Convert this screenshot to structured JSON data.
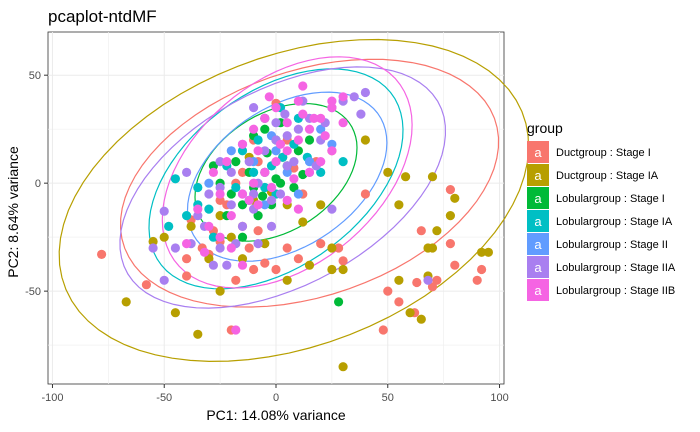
{
  "chart_data": {
    "type": "scatter",
    "title": "pcaplot-ntdMF",
    "xlabel": "PC1: 14.08% variance",
    "ylabel": "PC2: 8.64% variance",
    "xlim": [
      -102,
      102
    ],
    "ylim": [
      -93,
      70
    ],
    "x_ticks": [
      -100,
      -50,
      0,
      50,
      100
    ],
    "y_ticks": [
      -50,
      0,
      50
    ],
    "x_tick_labels": [
      "-100",
      "-50",
      "0",
      "50",
      "100"
    ],
    "y_tick_labels": [
      "-50",
      "0",
      "50"
    ],
    "grid": true,
    "legend": {
      "title": "group",
      "placement": "right",
      "key_glyph": "a"
    },
    "series": [
      {
        "name": "Ductgroup : Stage I",
        "color": "#F8766D",
        "ellipse": {
          "cx": 15,
          "cy": 0,
          "rx": 88,
          "ry": 52,
          "angle": 20
        },
        "points": [
          [
            -78,
            -33
          ],
          [
            -58,
            -47
          ],
          [
            -40,
            -43
          ],
          [
            -25,
            -27
          ],
          [
            -20,
            -68
          ],
          [
            -30,
            -33
          ],
          [
            -18,
            -45
          ],
          [
            -10,
            -40
          ],
          [
            -5,
            -37
          ],
          [
            0,
            -40
          ],
          [
            -15,
            -20
          ],
          [
            -22,
            -10
          ],
          [
            5,
            -30
          ],
          [
            10,
            -35
          ],
          [
            20,
            -28
          ],
          [
            -38,
            -17
          ],
          [
            -33,
            -30
          ],
          [
            -2,
            -4
          ],
          [
            3,
            12
          ],
          [
            8,
            7
          ],
          [
            -15,
            5
          ],
          [
            -10,
            20
          ],
          [
            5,
            20
          ],
          [
            18,
            10
          ],
          [
            12,
            -5
          ],
          [
            -25,
            -8
          ],
          [
            30,
            -36
          ],
          [
            50,
            -50
          ],
          [
            55,
            -55
          ],
          [
            48,
            -68
          ],
          [
            65,
            -22
          ],
          [
            63,
            -46
          ],
          [
            72,
            -45
          ],
          [
            78,
            -28
          ],
          [
            80,
            -38
          ],
          [
            90,
            -45
          ],
          [
            92,
            -40
          ],
          [
            78,
            -3
          ],
          [
            62,
            -60
          ],
          [
            70,
            -48
          ],
          [
            40,
            -5
          ],
          [
            -5,
            30
          ],
          [
            0,
            37
          ],
          [
            -8,
            10
          ],
          [
            25,
            15
          ],
          [
            -40,
            -35
          ],
          [
            -12,
            -30
          ],
          [
            -28,
            -22
          ],
          [
            -18,
            0
          ],
          [
            -8,
            -22
          ],
          [
            28,
            -30
          ]
        ]
      },
      {
        "name": "Ductgroup : Stage IA",
        "color": "#B79F00",
        "ellipse": {
          "cx": 8,
          "cy": -8,
          "rx": 110,
          "ry": 67,
          "angle": 22
        },
        "points": [
          [
            -67,
            -55
          ],
          [
            -55,
            -27
          ],
          [
            -45,
            -60
          ],
          [
            -35,
            -70
          ],
          [
            -25,
            -50
          ],
          [
            -50,
            -25
          ],
          [
            -38,
            -20
          ],
          [
            -15,
            -35
          ],
          [
            -25,
            -15
          ],
          [
            5,
            -45
          ],
          [
            15,
            -38
          ],
          [
            25,
            -40
          ],
          [
            30,
            -40
          ],
          [
            55,
            -45
          ],
          [
            60,
            -60
          ],
          [
            65,
            -63
          ],
          [
            68,
            -43
          ],
          [
            70,
            -30
          ],
          [
            72,
            -22
          ],
          [
            78,
            -15
          ],
          [
            92,
            -32
          ],
          [
            95,
            -32
          ],
          [
            80,
            -7
          ],
          [
            55,
            -10
          ],
          [
            70,
            3
          ],
          [
            68,
            -30
          ],
          [
            25,
            -30
          ],
          [
            30,
            -85
          ],
          [
            -2,
            -4
          ],
          [
            5,
            -10
          ],
          [
            12,
            -18
          ],
          [
            40,
            20
          ],
          [
            50,
            5
          ],
          [
            58,
            3
          ],
          [
            -20,
            -25
          ],
          [
            -30,
            -35
          ],
          [
            -5,
            -28
          ],
          [
            20,
            -10
          ],
          [
            -10,
            -8
          ],
          [
            -12,
            12
          ]
        ]
      },
      {
        "name": "Lobulargroup : Stage I",
        "color": "#00BA38",
        "ellipse": {
          "cx": 0,
          "cy": 5,
          "rx": 40,
          "ry": 27,
          "angle": 35
        },
        "points": [
          [
            -10,
            22
          ],
          [
            -5,
            25
          ],
          [
            2,
            28
          ],
          [
            -18,
            10
          ],
          [
            -12,
            5
          ],
          [
            -5,
            5
          ],
          [
            0,
            2
          ],
          [
            5,
            8
          ],
          [
            10,
            15
          ],
          [
            15,
            20
          ],
          [
            -25,
            0
          ],
          [
            -20,
            -5
          ],
          [
            -15,
            -10
          ],
          [
            -8,
            -15
          ],
          [
            -2,
            -10
          ],
          [
            2,
            0
          ],
          [
            -10,
            -2
          ],
          [
            -22,
            -15
          ],
          [
            -15,
            -25
          ],
          [
            0,
            20
          ],
          [
            -4,
            14
          ],
          [
            8,
            -2
          ],
          [
            -28,
            8
          ],
          [
            12,
            4
          ],
          [
            28,
            -55
          ],
          [
            -6,
            -6
          ]
        ]
      },
      {
        "name": "Lobulargroup : Stage IA",
        "color": "#00BFC4",
        "ellipse": {
          "cx": 0,
          "cy": 2,
          "rx": 65,
          "ry": 40,
          "angle": 38
        },
        "points": [
          [
            -45,
            2
          ],
          [
            -35,
            -2
          ],
          [
            -40,
            -15
          ],
          [
            -48,
            -20
          ],
          [
            -30,
            -12
          ],
          [
            -22,
            8
          ],
          [
            -15,
            15
          ],
          [
            -10,
            5
          ],
          [
            -2,
            8
          ],
          [
            3,
            12
          ],
          [
            8,
            18
          ],
          [
            14,
            12
          ],
          [
            20,
            5
          ],
          [
            -5,
            -2
          ],
          [
            -12,
            -8
          ],
          [
            -28,
            -25
          ],
          [
            -35,
            -10
          ],
          [
            -5,
            30
          ],
          [
            2,
            35
          ],
          [
            10,
            30
          ],
          [
            30,
            10
          ],
          [
            -18,
            -2
          ],
          [
            -8,
            20
          ],
          [
            0,
            -5
          ]
        ]
      },
      {
        "name": "Lobulargroup : Stage II",
        "color": "#619CFF",
        "ellipse": {
          "cx": 5,
          "cy": 3,
          "rx": 50,
          "ry": 32,
          "angle": 36
        },
        "points": [
          [
            -30,
            0
          ],
          [
            -20,
            15
          ],
          [
            -10,
            10
          ],
          [
            0,
            15
          ],
          [
            5,
            5
          ],
          [
            10,
            -5
          ],
          [
            15,
            10
          ],
          [
            -5,
            -10
          ],
          [
            20,
            25
          ],
          [
            -15,
            -5
          ],
          [
            25,
            18
          ],
          [
            -2,
            22
          ]
        ]
      },
      {
        "name": "Lobulargroup : Stage IIA",
        "color": "#A97FF0",
        "ellipse": {
          "cx": 3,
          "cy": -2,
          "rx": 80,
          "ry": 45,
          "angle": 30
        },
        "points": [
          [
            -50,
            -13
          ],
          [
            -38,
            -28
          ],
          [
            -45,
            -30
          ],
          [
            -30,
            -5
          ],
          [
            -25,
            -2
          ],
          [
            -20,
            5
          ],
          [
            -12,
            10
          ],
          [
            -5,
            15
          ],
          [
            0,
            20
          ],
          [
            5,
            22
          ],
          [
            10,
            25
          ],
          [
            15,
            30
          ],
          [
            20,
            20
          ],
          [
            25,
            35
          ],
          [
            30,
            38
          ],
          [
            35,
            40
          ],
          [
            40,
            42
          ],
          [
            -10,
            -5
          ],
          [
            -20,
            -10
          ],
          [
            -15,
            -20
          ],
          [
            -8,
            -28
          ],
          [
            -2,
            -20
          ],
          [
            -25,
            -30
          ],
          [
            -5,
            5
          ],
          [
            8,
            10
          ],
          [
            15,
            5
          ],
          [
            25,
            -12
          ],
          [
            -10,
            35
          ],
          [
            12,
            38
          ],
          [
            -35,
            -15
          ],
          [
            -28,
            -38
          ],
          [
            -18,
            -28
          ],
          [
            -10,
            -12
          ],
          [
            -2,
            -8
          ],
          [
            -8,
            0
          ],
          [
            2,
            -5
          ],
          [
            4,
            32
          ],
          [
            5,
            8
          ],
          [
            18,
            8
          ],
          [
            22,
            28
          ],
          [
            -15,
            18
          ],
          [
            -25,
            10
          ],
          [
            -40,
            5
          ],
          [
            -55,
            -30
          ],
          [
            -50,
            -45
          ],
          [
            68,
            -45
          ],
          [
            0,
            28
          ],
          [
            -32,
            -20
          ],
          [
            -22,
            -38
          ],
          [
            38,
            32
          ]
        ]
      },
      {
        "name": "Lobulargroup : Stage IIB",
        "color": "#F564E3",
        "ellipse": {
          "cx": 5,
          "cy": 5,
          "rx": 65,
          "ry": 42,
          "angle": 42
        },
        "points": [
          [
            -35,
            -12
          ],
          [
            -40,
            -28
          ],
          [
            -30,
            -20
          ],
          [
            -20,
            -15
          ],
          [
            -15,
            -5
          ],
          [
            -10,
            0
          ],
          [
            -5,
            5
          ],
          [
            0,
            10
          ],
          [
            5,
            15
          ],
          [
            10,
            20
          ],
          [
            15,
            25
          ],
          [
            20,
            30
          ],
          [
            25,
            35
          ],
          [
            30,
            40
          ],
          [
            -25,
            -5
          ],
          [
            -22,
            10
          ],
          [
            -15,
            18
          ],
          [
            -10,
            25
          ],
          [
            -5,
            30
          ],
          [
            0,
            35
          ],
          [
            10,
            38
          ],
          [
            15,
            5
          ],
          [
            20,
            10
          ],
          [
            25,
            15
          ],
          [
            -2,
            -2
          ],
          [
            5,
            -8
          ],
          [
            10,
            -12
          ],
          [
            -8,
            -10
          ],
          [
            -20,
            -30
          ],
          [
            -15,
            -38
          ],
          [
            -18,
            -68
          ],
          [
            25,
            38
          ],
          [
            12,
            32
          ],
          [
            -32,
            -32
          ],
          [
            -25,
            -25
          ],
          [
            -12,
            -8
          ],
          [
            2,
            18
          ],
          [
            8,
            2
          ],
          [
            22,
            22
          ],
          [
            -28,
            5
          ],
          [
            -3,
            40
          ],
          [
            12,
            45
          ],
          [
            17,
            30
          ],
          [
            30,
            28
          ],
          [
            -8,
            15
          ],
          [
            5,
            28
          ]
        ]
      }
    ]
  }
}
